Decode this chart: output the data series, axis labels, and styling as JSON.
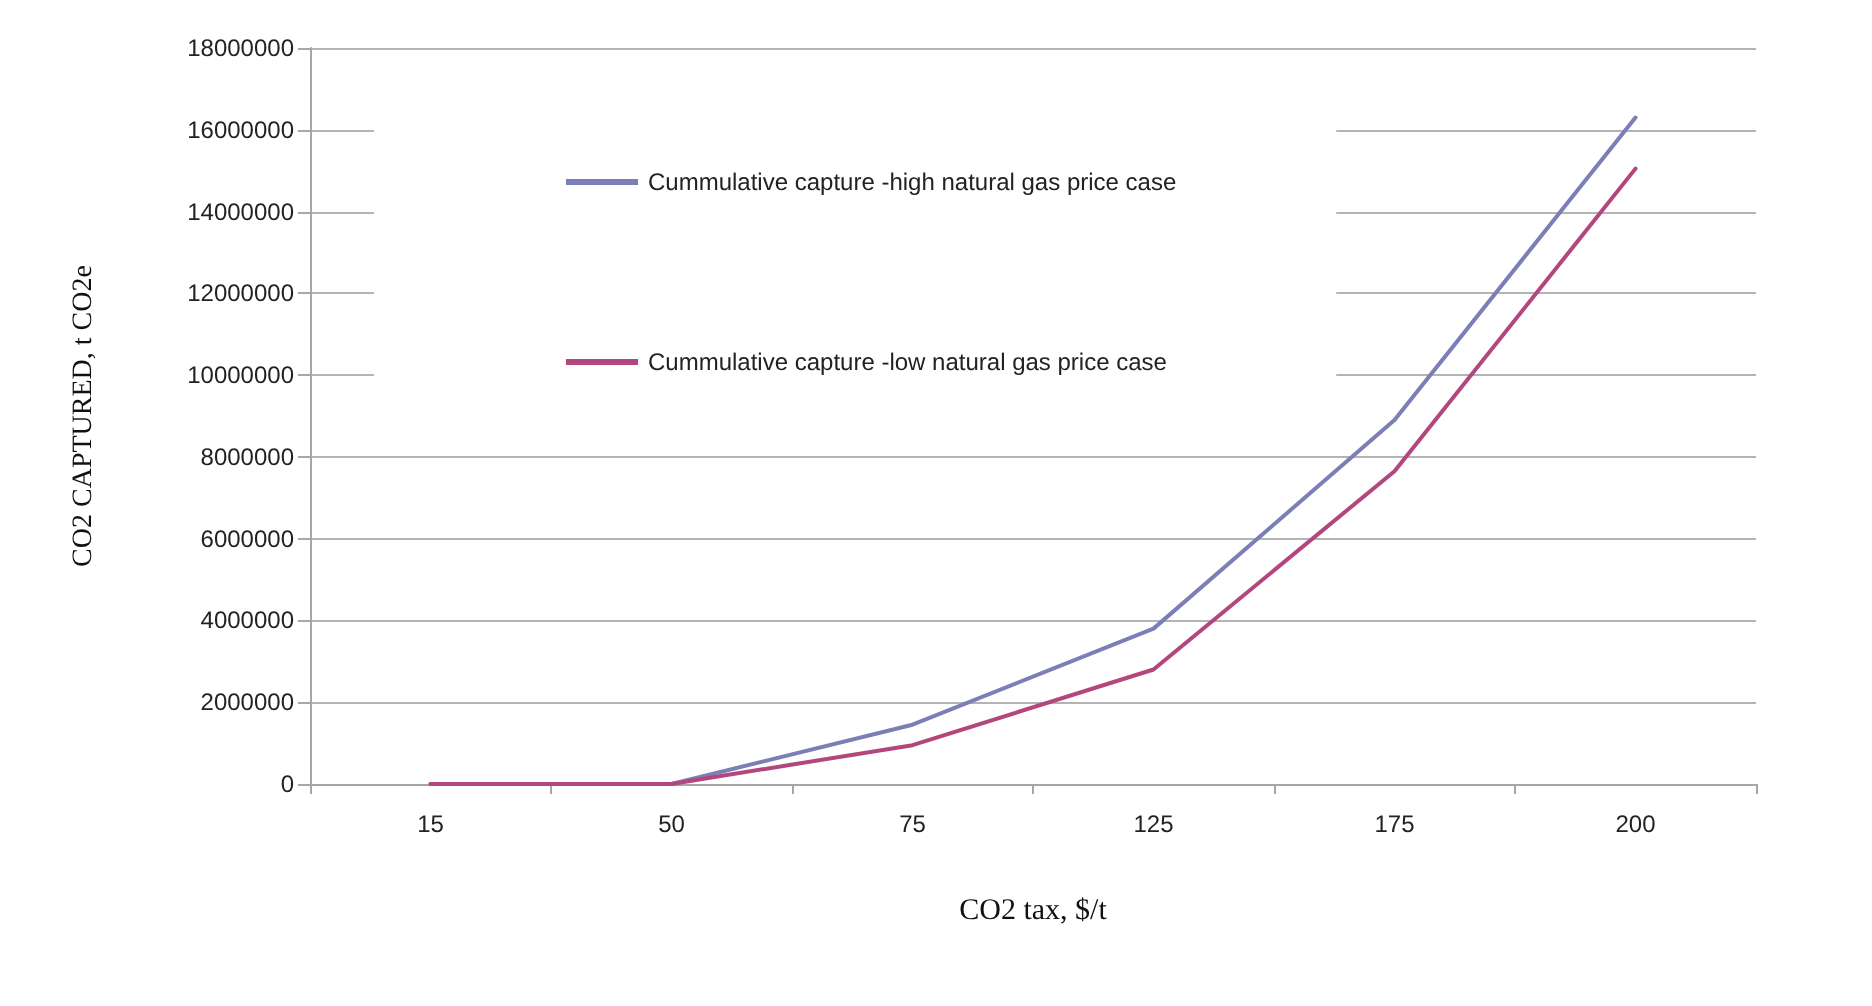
{
  "chart_data": {
    "type": "line",
    "xlabel": "CO2 tax, $/t",
    "ylabel": "CO2 CAPTURED, t CO2e",
    "categories": [
      "15",
      "50",
      "75",
      "125",
      "175",
      "200"
    ],
    "series": [
      {
        "name": "Cummulative capture -high natural gas price case",
        "color": "#7b7fb6",
        "values": [
          0,
          0,
          1450000,
          3800000,
          8900000,
          16300000
        ]
      },
      {
        "name": "Cummulative capture -low natural gas price case",
        "color": "#b3467c",
        "values": [
          0,
          0,
          950000,
          2800000,
          7650000,
          15050000
        ]
      }
    ],
    "ylim": [
      0,
      18000000
    ],
    "yticks": [
      0,
      2000000,
      4000000,
      6000000,
      8000000,
      10000000,
      12000000,
      14000000,
      16000000,
      18000000
    ],
    "grid": "y",
    "legend": "top",
    "marker": "none",
    "line_style": "solid"
  }
}
